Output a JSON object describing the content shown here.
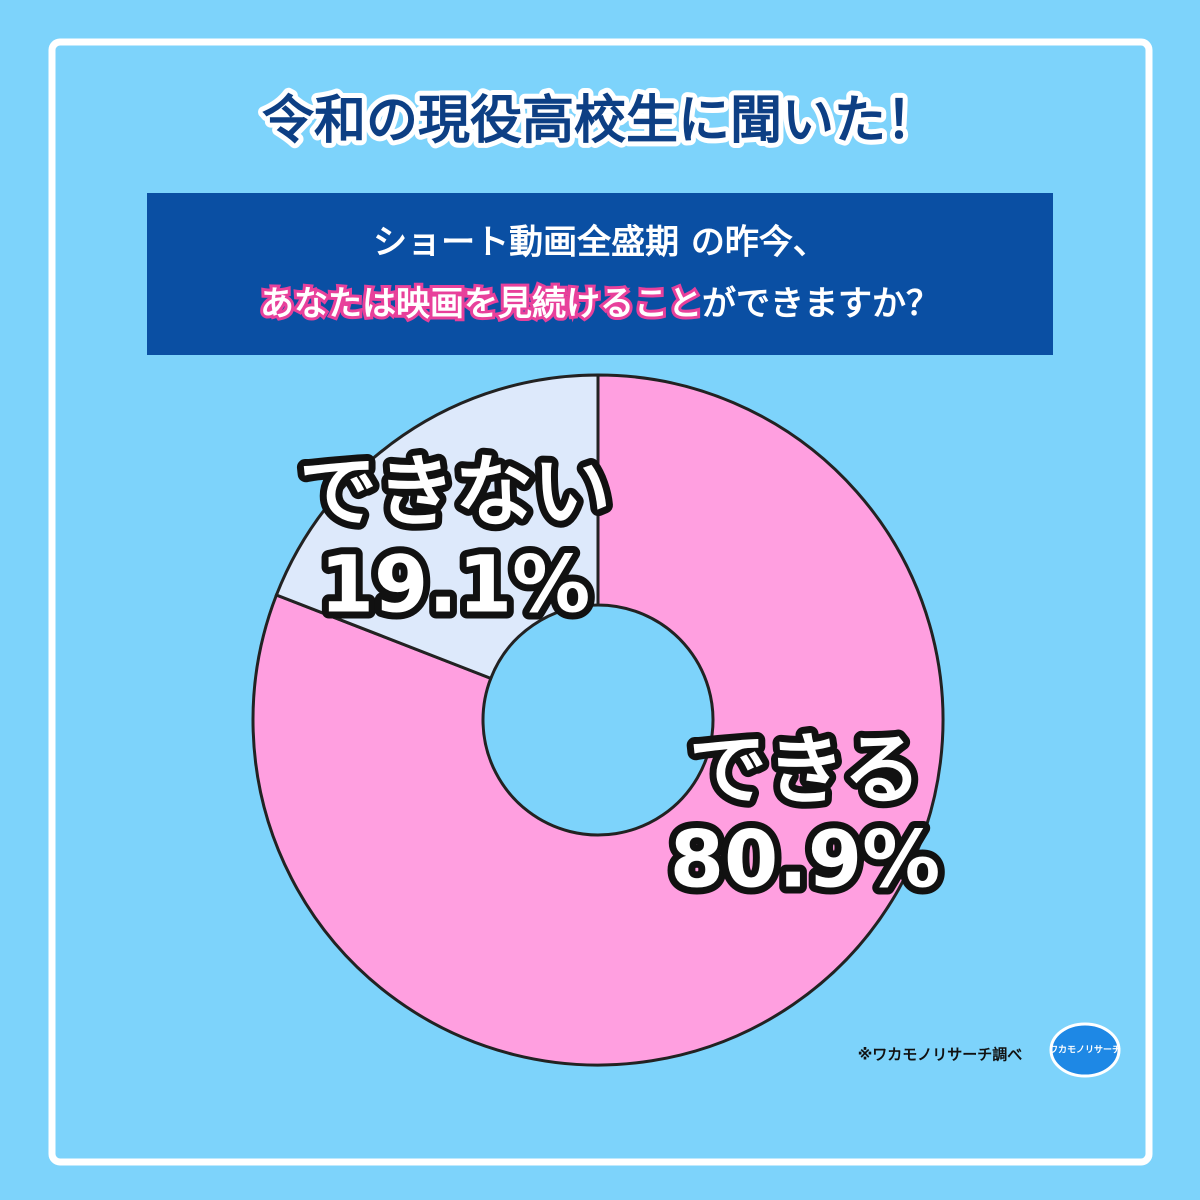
{
  "chart_data": {
    "type": "pie",
    "title": "令和の現役高校生に聞いた！",
    "question": {
      "line1": "ショート動画全盛期 の昨今、",
      "line2_highlight": "あなたは映画を見続けること",
      "line2_rest": "ができますか？"
    },
    "categories": [
      "できる",
      "できない"
    ],
    "values": [
      80.9,
      19.1
    ],
    "value_labels": [
      "80.9%",
      "19.1%"
    ],
    "colors": [
      "#ff9fe0",
      "#dde9fb"
    ],
    "donut": true,
    "footnote": "※ワカモノリサーチ調べ",
    "logo": "ワカモノリサーチ"
  }
}
